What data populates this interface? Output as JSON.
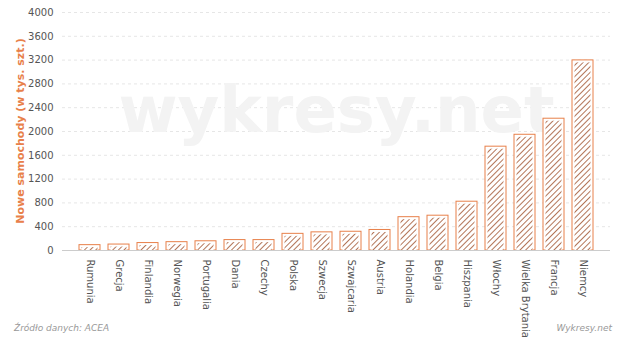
{
  "chart_data": {
    "type": "bar",
    "y_label": "Nowe samochody (w tys. szt.)",
    "categories": [
      "Rumunia",
      "Grecja",
      "Finlandia",
      "Norwegia",
      "Portugalia",
      "Dania",
      "Czechy",
      "Polska",
      "Szwecja",
      "Szwajcaria",
      "Austria",
      "Holandia",
      "Belgia",
      "Hiszpania",
      "Włochy",
      "Wielka Brytania",
      "Francja",
      "Niemcy"
    ],
    "values": [
      90,
      100,
      125,
      140,
      155,
      175,
      175,
      280,
      305,
      315,
      345,
      560,
      585,
      820,
      1745,
      1945,
      2215,
      3195
    ],
    "color": "#e8804a",
    "ylim": [
      0,
      4000
    ],
    "yticks": [
      0,
      400,
      800,
      1200,
      1600,
      2000,
      2400,
      2800,
      3200,
      3600,
      4000
    ],
    "grid": true,
    "annotations": [
      "wykresy.net",
      "Źródło danych: ACEA",
      "Wykresy.net"
    ]
  }
}
